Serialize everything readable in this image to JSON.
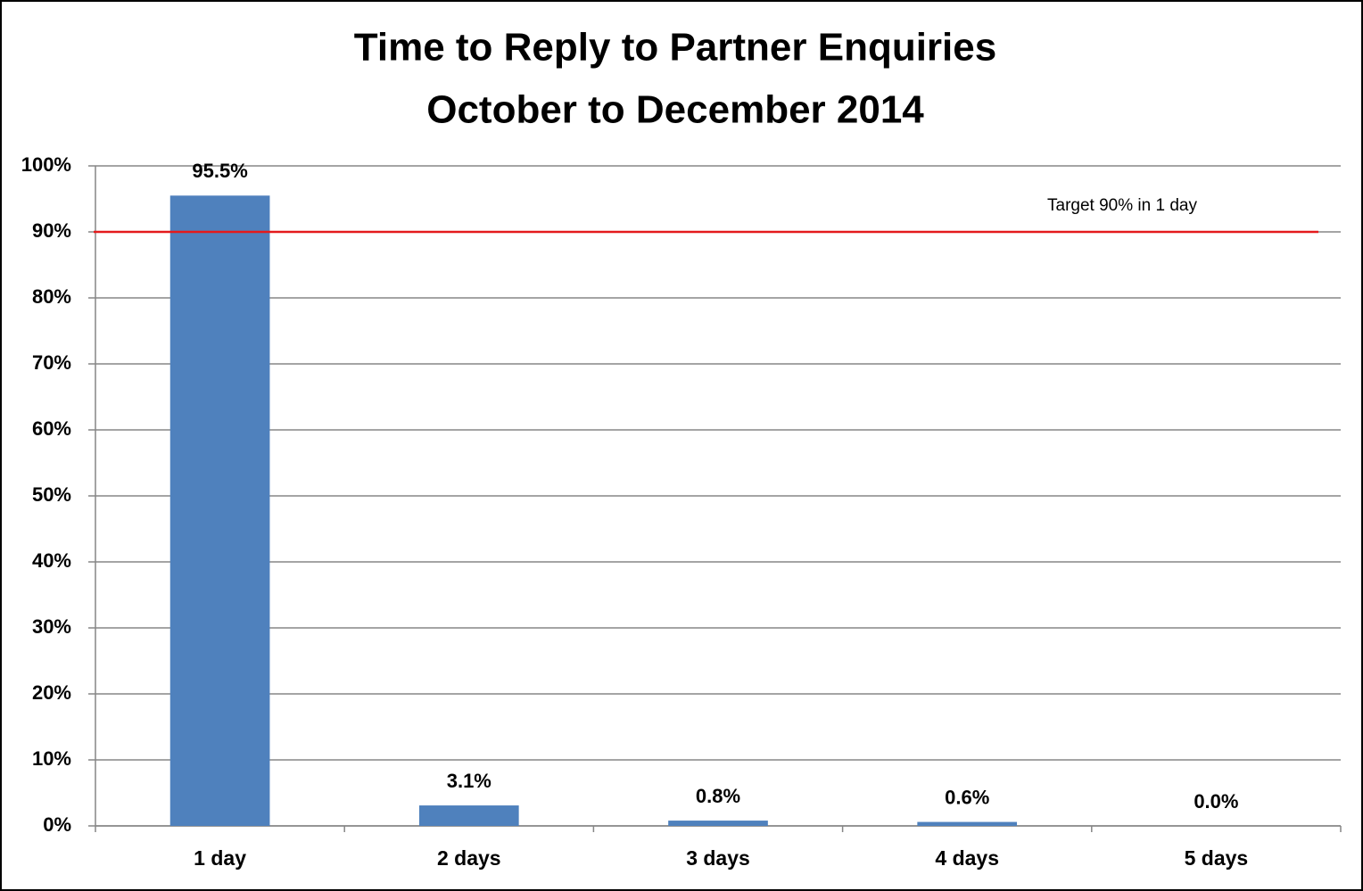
{
  "chart_data": {
    "type": "bar",
    "title": [
      "Time to Reply to Partner Enquiries",
      "October to December 2014"
    ],
    "categories": [
      "1 day",
      "2 days",
      "3 days",
      "4 days",
      "5 days"
    ],
    "values": [
      95.5,
      3.1,
      0.8,
      0.6,
      0.0
    ],
    "value_labels": [
      "95.5%",
      "3.1%",
      "0.8%",
      "0.6%",
      "0.0%"
    ],
    "color": "#4f81bd",
    "ylim": [
      0,
      100
    ],
    "yticks": [
      {
        "value": 0,
        "label": "0%"
      },
      {
        "value": 10,
        "label": "10%"
      },
      {
        "value": 20,
        "label": "20%"
      },
      {
        "value": 30,
        "label": "30%"
      },
      {
        "value": 40,
        "label": "40%"
      },
      {
        "value": 50,
        "label": "50%"
      },
      {
        "value": 60,
        "label": "60%"
      },
      {
        "value": 70,
        "label": "70%"
      },
      {
        "value": 80,
        "label": "80%"
      },
      {
        "value": 90,
        "label": "90%"
      },
      {
        "value": 100,
        "label": "100%"
      }
    ],
    "grid": true,
    "target": {
      "value": 90,
      "label": "Target 90% in 1 day",
      "color": "#e41a1c"
    }
  }
}
